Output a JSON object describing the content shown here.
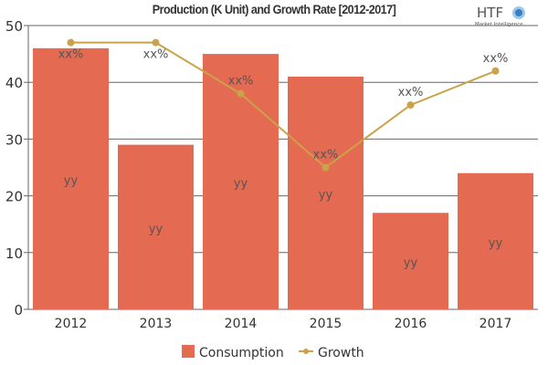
{
  "chart_data": {
    "type": "bar",
    "title": "Production (K Unit) and Growth Rate [2012-2017]",
    "categories": [
      "2012",
      "2013",
      "2014",
      "2015",
      "2016",
      "2017"
    ],
    "ylim": [
      0,
      50
    ],
    "yticks": [
      0,
      10,
      20,
      30,
      40,
      50
    ],
    "grid": true,
    "legend_position": "bottom",
    "series": [
      {
        "name": "Consumption",
        "type": "bar",
        "color": "#e56a52",
        "values": [
          46,
          29,
          45,
          41,
          17,
          24
        ],
        "labels": [
          "yy",
          "yy",
          "yy",
          "yy",
          "yy",
          "yy"
        ]
      },
      {
        "name": "Growth",
        "type": "line",
        "color": "#c9a24a",
        "values": [
          47,
          47,
          38,
          25,
          36,
          42
        ],
        "labels": [
          "xx%",
          "xx%",
          "xx%",
          "xx%",
          "xx%",
          "xx%"
        ]
      }
    ]
  },
  "logo": {
    "text": "HTF",
    "subtext": "Market Intelligence"
  }
}
